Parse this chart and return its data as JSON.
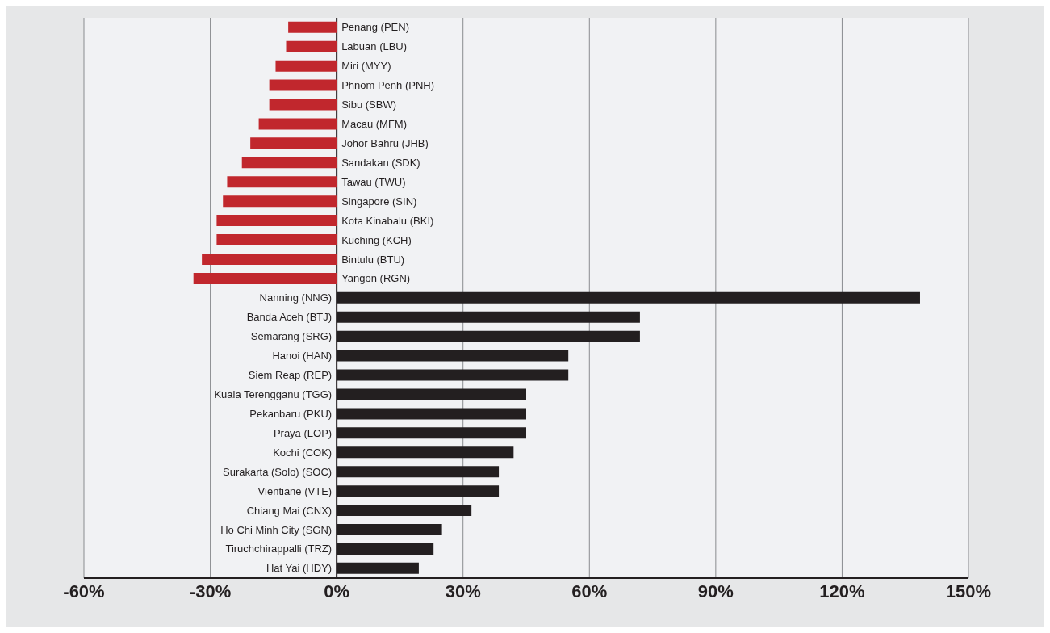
{
  "chart_data": {
    "type": "bar",
    "orientation": "horizontal",
    "categories": [
      "Penang (PEN)",
      "Labuan (LBU)",
      "Miri (MYY)",
      "Phnom Penh (PNH)",
      "Sibu (SBW)",
      "Macau (MFM)",
      "Johor Bahru (JHB)",
      "Sandakan (SDK)",
      "Tawau (TWU)",
      "Singapore (SIN)",
      "Kota Kinabalu (BKI)",
      "Kuching (KCH)",
      "Bintulu (BTU)",
      "Yangon (RGN)",
      "Nanning (NNG)",
      "Banda Aceh (BTJ)",
      "Semarang (SRG)",
      "Hanoi (HAN)",
      "Siem Reap (REP)",
      "Kuala Terengganu (TGG)",
      "Pekanbaru (PKU)",
      "Praya (LOP)",
      "Kochi (COK)",
      "Surakarta (Solo) (SOC)",
      "Vientiane (VTE)",
      "Chiang Mai (CNX)",
      "Ho Chi Minh City (SGN)",
      "Tiruchchirappalli (TRZ)",
      "Hat Yai (HDY)"
    ],
    "values": [
      -11.5,
      -12,
      -14.5,
      -16,
      -16,
      -18.5,
      -20.5,
      -22.5,
      -26,
      -27,
      -28.5,
      -28.5,
      -32,
      -34,
      138.5,
      72,
      72,
      55,
      55,
      45,
      45,
      45,
      42,
      38.5,
      38.5,
      32,
      25,
      23,
      19.5
    ],
    "colors": [
      "#c1272d",
      "#c1272d",
      "#c1272d",
      "#c1272d",
      "#c1272d",
      "#c1272d",
      "#c1272d",
      "#c1272d",
      "#c1272d",
      "#c1272d",
      "#c1272d",
      "#c1272d",
      "#c1272d",
      "#c1272d",
      "#231f20",
      "#231f20",
      "#231f20",
      "#231f20",
      "#231f20",
      "#231f20",
      "#231f20",
      "#231f20",
      "#231f20",
      "#231f20",
      "#231f20",
      "#231f20",
      "#231f20",
      "#231f20",
      "#231f20"
    ],
    "xlim": [
      -60,
      150
    ],
    "xticks": [
      {
        "value": -60,
        "label": "-60%"
      },
      {
        "value": -30,
        "label": "-30%"
      },
      {
        "value": 0,
        "label": "0%"
      },
      {
        "value": 30,
        "label": "30%"
      },
      {
        "value": 60,
        "label": "60%"
      },
      {
        "value": 90,
        "label": "90%"
      },
      {
        "value": 120,
        "label": "120%"
      },
      {
        "value": 150,
        "label": "150%"
      }
    ],
    "grid": "x",
    "tick_labels": "x"
  }
}
